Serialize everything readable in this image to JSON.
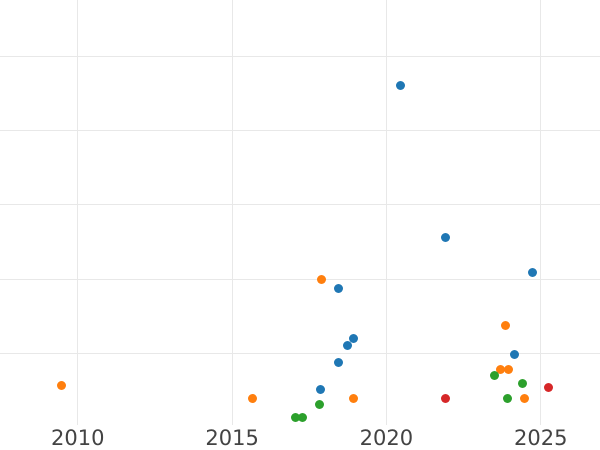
{
  "page": {
    "background_color": "#ffffff",
    "gridline_color": "#e8e8e8",
    "tick_label_color": "#434343"
  },
  "chart_data": {
    "type": "scatter",
    "title": "",
    "xlabel": "",
    "ylabel": "",
    "grid": true,
    "legend_position": "none",
    "x_ticks": [
      2010,
      2015,
      2020,
      2025
    ],
    "x_tick_labels": [
      "2010",
      "2015",
      "2020",
      "2025"
    ],
    "x_range": [
      2007.48,
      2026.92
    ],
    "y_range": [
      0.04,
      5.754
    ],
    "y_gridlines": [
      1,
      2,
      3,
      4,
      5
    ],
    "y_units_note": "y-axis has no visible labels; values estimated in gridline units (one unit per horizontal gridline spacing, virtual bottom gridline = 0)",
    "series": [
      {
        "name": "blue",
        "color": "#1f77b4",
        "points": [
          [
            2020.46,
            4.6
          ],
          [
            2021.92,
            2.56
          ],
          [
            2024.73,
            2.09
          ],
          [
            2018.44,
            1.88
          ],
          [
            2018.94,
            1.2
          ],
          [
            2018.73,
            1.11
          ],
          [
            2018.46,
            0.88
          ],
          [
            2024.14,
            0.99
          ],
          [
            2017.86,
            0.52
          ]
        ]
      },
      {
        "name": "orange",
        "color": "#ff7f0e",
        "points": [
          [
            2009.47,
            0.57
          ],
          [
            2015.65,
            0.4
          ],
          [
            2017.91,
            1.99
          ],
          [
            2018.92,
            0.39
          ],
          [
            2023.87,
            1.38
          ],
          [
            2023.68,
            0.79
          ],
          [
            2023.97,
            0.79
          ],
          [
            2024.47,
            0.4
          ]
        ]
      },
      {
        "name": "green",
        "color": "#2ca02c",
        "points": [
          [
            2023.51,
            0.7
          ],
          [
            2024.42,
            0.6
          ],
          [
            2023.92,
            0.39
          ],
          [
            2017.84,
            0.31
          ],
          [
            2017.05,
            0.14
          ],
          [
            2017.28,
            0.14
          ]
        ]
      },
      {
        "name": "red",
        "color": "#d62728",
        "points": [
          [
            2021.91,
            0.39
          ],
          [
            2025.25,
            0.55
          ]
        ]
      }
    ]
  }
}
